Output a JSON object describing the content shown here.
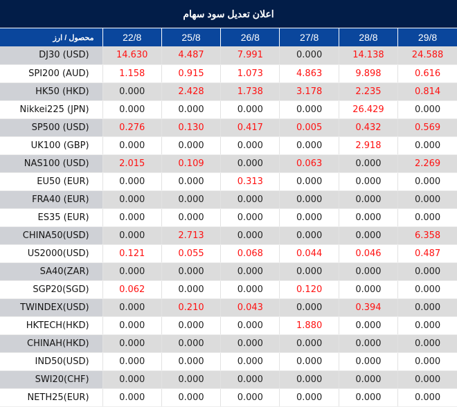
{
  "title": "اعلان تعدیل سود سهام",
  "colors": {
    "title_bg": "#021d48",
    "header_bg": "#0a469c",
    "positive": "#ff1111",
    "neutral": "#222222"
  },
  "table": {
    "headers": [
      "محصول / ارز",
      "22/8",
      "25/8",
      "26/8",
      "27/8",
      "28/8",
      "29/8"
    ],
    "rows": [
      {
        "product": "DJ30 (USD)",
        "values": [
          "14.630",
          "4.487",
          "7.991",
          "0.000",
          "14.138",
          "24.588"
        ]
      },
      {
        "product": "SPI200 (AUD)",
        "values": [
          "1.158",
          "0.915",
          "1.073",
          "4.863",
          "9.898",
          "0.616"
        ]
      },
      {
        "product": "HK50 (HKD)",
        "values": [
          "0.000",
          "2.428",
          "1.738",
          "3.178",
          "2.235",
          "0.814"
        ]
      },
      {
        "product": "Nikkei225 (JPN)",
        "values": [
          "0.000",
          "0.000",
          "0.000",
          "0.000",
          "26.429",
          "0.000"
        ]
      },
      {
        "product": "SP500 (USD)",
        "values": [
          "0.276",
          "0.130",
          "0.417",
          "0.005",
          "0.432",
          "0.569"
        ]
      },
      {
        "product": "UK100 (GBP)",
        "values": [
          "0.000",
          "0.000",
          "0.000",
          "0.000",
          "2.918",
          "0.000"
        ]
      },
      {
        "product": "NAS100 (USD)",
        "values": [
          "2.015",
          "0.109",
          "0.000",
          "0.063",
          "0.000",
          "2.269"
        ]
      },
      {
        "product": "EU50 (EUR)",
        "values": [
          "0.000",
          "0.000",
          "0.313",
          "0.000",
          "0.000",
          "0.000"
        ]
      },
      {
        "product": "FRA40 (EUR)",
        "values": [
          "0.000",
          "0.000",
          "0.000",
          "0.000",
          "0.000",
          "0.000"
        ]
      },
      {
        "product": "ES35 (EUR)",
        "values": [
          "0.000",
          "0.000",
          "0.000",
          "0.000",
          "0.000",
          "0.000"
        ]
      },
      {
        "product": "CHINA50(USD)",
        "values": [
          "0.000",
          "2.713",
          "0.000",
          "0.000",
          "0.000",
          "6.358"
        ]
      },
      {
        "product": "US2000(USD)",
        "values": [
          "0.121",
          "0.055",
          "0.068",
          "0.044",
          "0.046",
          "0.487"
        ]
      },
      {
        "product": "SA40(ZAR)",
        "values": [
          "0.000",
          "0.000",
          "0.000",
          "0.000",
          "0.000",
          "0.000"
        ]
      },
      {
        "product": "SGP20(SGD)",
        "values": [
          "0.062",
          "0.000",
          "0.000",
          "0.120",
          "0.000",
          "0.000"
        ]
      },
      {
        "product": "TWINDEX(USD)",
        "values": [
          "0.000",
          "0.210",
          "0.043",
          "0.000",
          "0.394",
          "0.000"
        ]
      },
      {
        "product": "HKTECH(HKD)",
        "values": [
          "0.000",
          "0.000",
          "0.000",
          "1.880",
          "0.000",
          "0.000"
        ]
      },
      {
        "product": "CHINAH(HKD)",
        "values": [
          "0.000",
          "0.000",
          "0.000",
          "0.000",
          "0.000",
          "0.000"
        ]
      },
      {
        "product": "IND50(USD)",
        "values": [
          "0.000",
          "0.000",
          "0.000",
          "0.000",
          "0.000",
          "0.000"
        ]
      },
      {
        "product": "SWI20(CHF)",
        "values": [
          "0.000",
          "0.000",
          "0.000",
          "0.000",
          "0.000",
          "0.000"
        ]
      },
      {
        "product": "NETH25(EUR)",
        "values": [
          "0.000",
          "0.000",
          "0.000",
          "0.000",
          "0.000",
          "0.000"
        ]
      }
    ]
  }
}
